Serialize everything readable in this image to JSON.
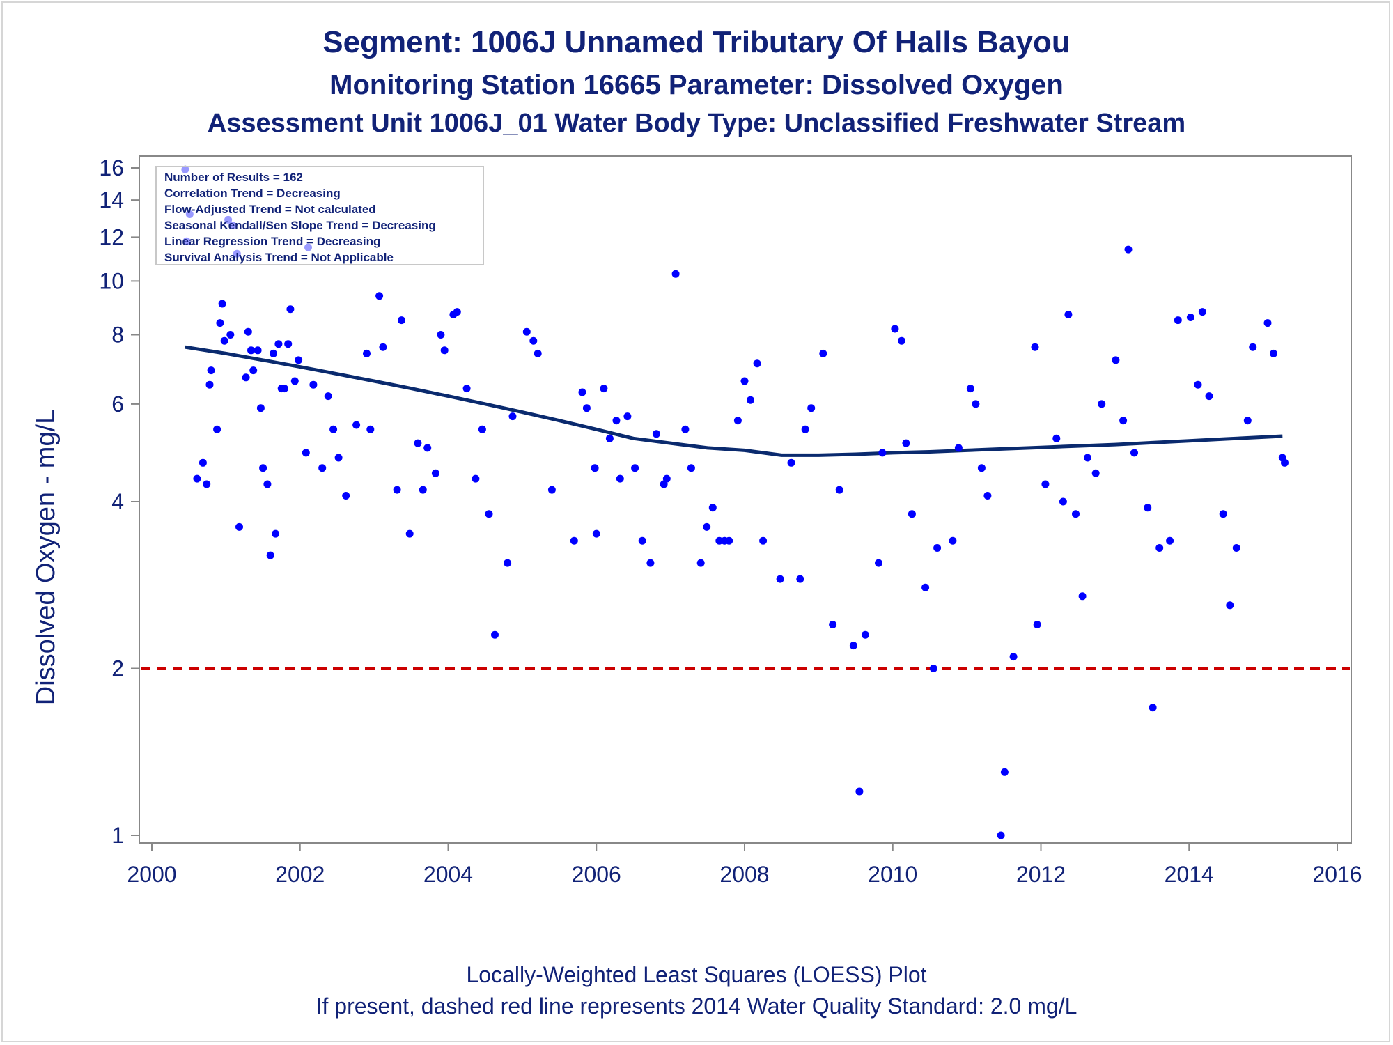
{
  "titles": {
    "line1": "Segment: 1006J  Unnamed Tributary Of Halls Bayou",
    "line2": "Monitoring Station 16665 Parameter: Dissolved Oxygen",
    "line3": "Assessment Unit 1006J_01   Water Body Type: Unclassified Freshwater Stream"
  },
  "footnotes": {
    "line1": "Locally-Weighted Least Squares (LOESS) Plot",
    "line2": "If present, dashed red line represents 2014 Water Quality Standard: 2.0 mg/L"
  },
  "stats_box": {
    "lines": [
      "Number of Results = 162",
      "Correlation Trend = Decreasing",
      "Flow-Adjusted Trend = Not calculated",
      "Seasonal Kendall/Sen Slope Trend = Decreasing",
      "Linear Regression Trend = Decreasing",
      "Survival Analysis Trend = Not Applicable"
    ]
  },
  "colors": {
    "title": "#112277",
    "points": "#0000ff",
    "loess": "#0a2a6e",
    "standard_line": "#cc0000",
    "axis": "#888888"
  },
  "chart_data": {
    "type": "scatter",
    "ylabel": "Dissolved Oxygen - mg/L",
    "xlabel": "",
    "y_scale": "log",
    "xlim": [
      2000,
      2016
    ],
    "ylim": [
      1,
      16
    ],
    "x_ticks": [
      2000,
      2002,
      2004,
      2006,
      2008,
      2010,
      2012,
      2014,
      2016
    ],
    "y_ticks": [
      1,
      2,
      4,
      6,
      8,
      10,
      12,
      14,
      16
    ],
    "grid": false,
    "legend": "top-left",
    "standard_line": {
      "y": 2.0,
      "style": "dashed"
    },
    "series": [
      {
        "type": "scatter",
        "points": [
          [
            2000.45,
            15.9
          ],
          [
            2000.47,
            11.8
          ],
          [
            2000.51,
            13.2
          ],
          [
            2000.61,
            4.4
          ],
          [
            2000.69,
            4.7
          ],
          [
            2000.74,
            4.3
          ],
          [
            2000.78,
            6.5
          ],
          [
            2000.8,
            6.9
          ],
          [
            2000.88,
            5.4
          ],
          [
            2000.92,
            8.4
          ],
          [
            2000.95,
            9.1
          ],
          [
            2000.98,
            7.8
          ],
          [
            2001.03,
            12.9
          ],
          [
            2001.06,
            8.0
          ],
          [
            2001.09,
            12.6
          ],
          [
            2001.15,
            11.2
          ],
          [
            2001.18,
            3.6
          ],
          [
            2001.27,
            6.7
          ],
          [
            2001.3,
            8.1
          ],
          [
            2001.34,
            7.5
          ],
          [
            2001.37,
            6.9
          ],
          [
            2001.43,
            7.5
          ],
          [
            2001.47,
            5.9
          ],
          [
            2001.5,
            4.6
          ],
          [
            2001.56,
            4.3
          ],
          [
            2001.6,
            3.2
          ],
          [
            2001.64,
            7.4
          ],
          [
            2001.67,
            3.5
          ],
          [
            2001.71,
            7.7
          ],
          [
            2001.75,
            6.4
          ],
          [
            2001.79,
            6.4
          ],
          [
            2001.84,
            7.7
          ],
          [
            2001.87,
            8.9
          ],
          [
            2001.93,
            6.6
          ],
          [
            2001.98,
            7.2
          ],
          [
            2002.08,
            4.9
          ],
          [
            2002.11,
            11.5
          ],
          [
            2002.18,
            6.5
          ],
          [
            2002.3,
            4.6
          ],
          [
            2002.38,
            6.2
          ],
          [
            2002.45,
            5.4
          ],
          [
            2002.52,
            4.8
          ],
          [
            2002.62,
            4.1
          ],
          [
            2002.76,
            5.5
          ],
          [
            2002.9,
            7.4
          ],
          [
            2002.95,
            5.4
          ],
          [
            2003.07,
            9.4
          ],
          [
            2003.12,
            7.6
          ],
          [
            2003.31,
            4.2
          ],
          [
            2003.37,
            8.5
          ],
          [
            2003.48,
            3.5
          ],
          [
            2003.59,
            5.1
          ],
          [
            2003.66,
            4.2
          ],
          [
            2003.72,
            5.0
          ],
          [
            2003.83,
            4.5
          ],
          [
            2003.9,
            8.0
          ],
          [
            2003.95,
            7.5
          ],
          [
            2004.07,
            8.7
          ],
          [
            2004.12,
            8.8
          ],
          [
            2004.25,
            6.4
          ],
          [
            2004.37,
            4.4
          ],
          [
            2004.46,
            5.4
          ],
          [
            2004.55,
            3.8
          ],
          [
            2004.63,
            2.3
          ],
          [
            2004.8,
            3.1
          ],
          [
            2004.87,
            5.7
          ],
          [
            2005.06,
            8.1
          ],
          [
            2005.15,
            7.8
          ],
          [
            2005.21,
            7.4
          ],
          [
            2005.4,
            4.2
          ],
          [
            2005.7,
            3.4
          ],
          [
            2005.81,
            6.3
          ],
          [
            2005.87,
            5.9
          ],
          [
            2005.98,
            4.6
          ],
          [
            2006.0,
            3.5
          ],
          [
            2006.1,
            6.4
          ],
          [
            2006.18,
            5.2
          ],
          [
            2006.27,
            5.6
          ],
          [
            2006.32,
            4.4
          ],
          [
            2006.42,
            5.7
          ],
          [
            2006.52,
            4.6
          ],
          [
            2006.62,
            3.4
          ],
          [
            2006.73,
            3.1
          ],
          [
            2006.81,
            5.3
          ],
          [
            2006.91,
            4.3
          ],
          [
            2006.95,
            4.4
          ],
          [
            2007.07,
            10.3
          ],
          [
            2007.2,
            5.4
          ],
          [
            2007.28,
            4.6
          ],
          [
            2007.41,
            3.1
          ],
          [
            2007.49,
            3.6
          ],
          [
            2007.57,
            3.9
          ],
          [
            2007.66,
            3.4
          ],
          [
            2007.73,
            3.4
          ],
          [
            2007.79,
            3.4
          ],
          [
            2007.91,
            5.6
          ],
          [
            2008.0,
            6.6
          ],
          [
            2008.08,
            6.1
          ],
          [
            2008.17,
            7.1
          ],
          [
            2008.25,
            3.4
          ],
          [
            2008.48,
            2.9
          ],
          [
            2008.63,
            4.7
          ],
          [
            2008.75,
            2.9
          ],
          [
            2008.82,
            5.4
          ],
          [
            2008.9,
            5.9
          ],
          [
            2009.06,
            7.4
          ],
          [
            2009.19,
            2.4
          ],
          [
            2009.28,
            4.2
          ],
          [
            2009.47,
            2.2
          ],
          [
            2009.55,
            1.2
          ],
          [
            2009.63,
            2.3
          ],
          [
            2009.81,
            3.1
          ],
          [
            2009.86,
            4.9
          ],
          [
            2010.03,
            8.2
          ],
          [
            2010.12,
            7.8
          ],
          [
            2010.18,
            5.1
          ],
          [
            2010.26,
            3.8
          ],
          [
            2010.44,
            2.8
          ],
          [
            2010.55,
            2.0
          ],
          [
            2010.6,
            3.3
          ],
          [
            2010.81,
            3.4
          ],
          [
            2010.89,
            5.0
          ],
          [
            2011.05,
            6.4
          ],
          [
            2011.12,
            6.0
          ],
          [
            2011.2,
            4.6
          ],
          [
            2011.28,
            4.1
          ],
          [
            2011.46,
            1.0
          ],
          [
            2011.51,
            1.3
          ],
          [
            2011.63,
            2.1
          ],
          [
            2011.92,
            7.6
          ],
          [
            2011.95,
            2.4
          ],
          [
            2012.06,
            4.3
          ],
          [
            2012.21,
            5.2
          ],
          [
            2012.3,
            4.0
          ],
          [
            2012.37,
            8.7
          ],
          [
            2012.47,
            3.8
          ],
          [
            2012.56,
            2.7
          ],
          [
            2012.63,
            4.8
          ],
          [
            2012.74,
            4.5
          ],
          [
            2012.82,
            6.0
          ],
          [
            2013.01,
            7.2
          ],
          [
            2013.11,
            5.6
          ],
          [
            2013.18,
            11.4
          ],
          [
            2013.26,
            4.9
          ],
          [
            2013.44,
            3.9
          ],
          [
            2013.51,
            1.7
          ],
          [
            2013.6,
            3.3
          ],
          [
            2013.74,
            3.4
          ],
          [
            2013.85,
            8.5
          ],
          [
            2014.02,
            8.6
          ],
          [
            2014.12,
            6.5
          ],
          [
            2014.18,
            8.8
          ],
          [
            2014.27,
            6.2
          ],
          [
            2014.46,
            3.8
          ],
          [
            2014.55,
            2.6
          ],
          [
            2014.64,
            3.3
          ],
          [
            2014.79,
            5.6
          ],
          [
            2014.86,
            7.6
          ],
          [
            2015.06,
            8.4
          ],
          [
            2015.14,
            7.4
          ],
          [
            2015.26,
            4.8
          ],
          [
            2015.29,
            4.7
          ]
        ]
      },
      {
        "type": "line",
        "name": "LOESS",
        "points": [
          [
            2000.45,
            7.6
          ],
          [
            2001.0,
            7.4
          ],
          [
            2001.5,
            7.2
          ],
          [
            2002.0,
            7.0
          ],
          [
            2002.5,
            6.8
          ],
          [
            2003.0,
            6.6
          ],
          [
            2003.5,
            6.4
          ],
          [
            2004.0,
            6.2
          ],
          [
            2004.5,
            6.0
          ],
          [
            2005.0,
            5.8
          ],
          [
            2005.5,
            5.6
          ],
          [
            2006.0,
            5.4
          ],
          [
            2006.5,
            5.2
          ],
          [
            2007.0,
            5.1
          ],
          [
            2007.5,
            5.0
          ],
          [
            2008.0,
            4.95
          ],
          [
            2008.5,
            4.85
          ],
          [
            2009.0,
            4.85
          ],
          [
            2009.5,
            4.87
          ],
          [
            2010.0,
            4.9
          ],
          [
            2010.5,
            4.92
          ],
          [
            2011.0,
            4.95
          ],
          [
            2011.5,
            4.98
          ],
          [
            2012.0,
            5.01
          ],
          [
            2012.5,
            5.04
          ],
          [
            2013.0,
            5.07
          ],
          [
            2013.5,
            5.11
          ],
          [
            2014.0,
            5.15
          ],
          [
            2014.5,
            5.19
          ],
          [
            2015.0,
            5.23
          ],
          [
            2015.26,
            5.25
          ]
        ]
      }
    ]
  }
}
